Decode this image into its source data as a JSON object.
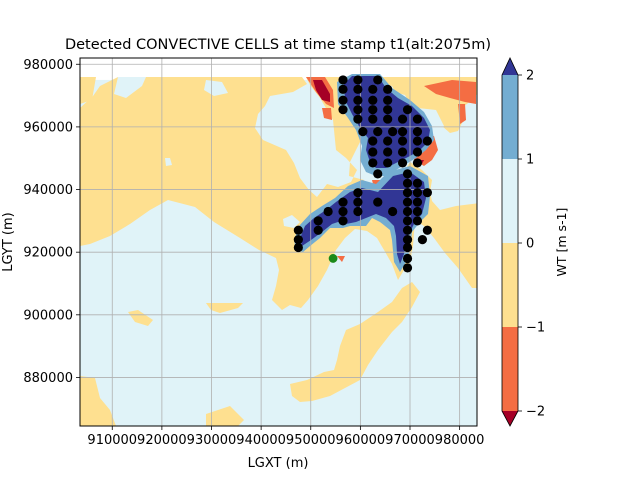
{
  "chart_data": {
    "type": "contour",
    "title": "Detected CONVECTIVE CELLS at time stamp t1(alt:2075m)",
    "xlabel": "LGXT (m)",
    "ylabel": "LGYT (m)",
    "xlim": [
      903500,
      983500
    ],
    "ylim": [
      864500,
      982000
    ],
    "data_extent": {
      "x": [
        903500,
        983500
      ],
      "y": [
        864500,
        975000
      ]
    },
    "xticks": [
      910000,
      920000,
      930000,
      940000,
      950000,
      960000,
      970000,
      980000
    ],
    "yticks": [
      880000,
      900000,
      920000,
      940000,
      960000,
      980000
    ],
    "grid": true,
    "colorbar": {
      "label": "WT [m s-1]",
      "levels": [
        -2,
        -1,
        0,
        1,
        2
      ],
      "tick_labels": [
        "−2",
        "−1",
        "0",
        "1",
        "2"
      ],
      "colors": {
        "under": "#a50026",
        "-2..-1": "#f46d43",
        "-1..0": "#fee090",
        "0..1": "#e0f3f8",
        "1..2": "#74add1",
        "over": "#313695"
      }
    },
    "cells": [
      [
        956500,
        975000
      ],
      [
        959500,
        975000
      ],
      [
        963500,
        975000
      ],
      [
        956500,
        972000
      ],
      [
        959500,
        972000
      ],
      [
        962500,
        972000
      ],
      [
        965500,
        972000
      ],
      [
        956500,
        968500
      ],
      [
        959500,
        968500
      ],
      [
        962500,
        968500
      ],
      [
        965500,
        968500
      ],
      [
        956500,
        965500
      ],
      [
        959500,
        965500
      ],
      [
        962500,
        965500
      ],
      [
        965500,
        965500
      ],
      [
        969500,
        965500
      ],
      [
        959500,
        962500
      ],
      [
        962500,
        962500
      ],
      [
        965500,
        962500
      ],
      [
        968500,
        962500
      ],
      [
        971500,
        962500
      ],
      [
        960500,
        958500
      ],
      [
        963500,
        958500
      ],
      [
        966500,
        958500
      ],
      [
        968500,
        958500
      ],
      [
        971500,
        958500
      ],
      [
        962500,
        955500
      ],
      [
        965500,
        955500
      ],
      [
        968500,
        955500
      ],
      [
        971500,
        955500
      ],
      [
        973500,
        955500
      ],
      [
        962500,
        952000
      ],
      [
        965500,
        952000
      ],
      [
        968500,
        952000
      ],
      [
        971500,
        952000
      ],
      [
        962500,
        948500
      ],
      [
        965500,
        948500
      ],
      [
        968500,
        948500
      ],
      [
        971500,
        948500
      ],
      [
        963500,
        945000
      ],
      [
        969500,
        945000
      ],
      [
        969500,
        942000
      ],
      [
        971500,
        942000
      ],
      [
        959500,
        939000
      ],
      [
        969500,
        939000
      ],
      [
        971500,
        939000
      ],
      [
        973500,
        939000
      ],
      [
        956500,
        936000
      ],
      [
        959500,
        936000
      ],
      [
        963500,
        936000
      ],
      [
        969500,
        936000
      ],
      [
        971500,
        936000
      ],
      [
        953500,
        933000
      ],
      [
        956500,
        933000
      ],
      [
        959500,
        933000
      ],
      [
        966500,
        933000
      ],
      [
        969500,
        933000
      ],
      [
        971500,
        933000
      ],
      [
        951500,
        930000
      ],
      [
        956500,
        930000
      ],
      [
        969500,
        930000
      ],
      [
        971500,
        930000
      ],
      [
        947500,
        927000
      ],
      [
        951500,
        927000
      ],
      [
        969500,
        927000
      ],
      [
        973500,
        927000
      ],
      [
        947500,
        924000
      ],
      [
        969500,
        924000
      ],
      [
        972500,
        924000
      ],
      [
        947500,
        921500
      ],
      [
        969500,
        921500
      ],
      [
        969500,
        918000
      ],
      [
        969500,
        915000
      ]
    ],
    "marker": [
      954500,
      918000
    ]
  }
}
